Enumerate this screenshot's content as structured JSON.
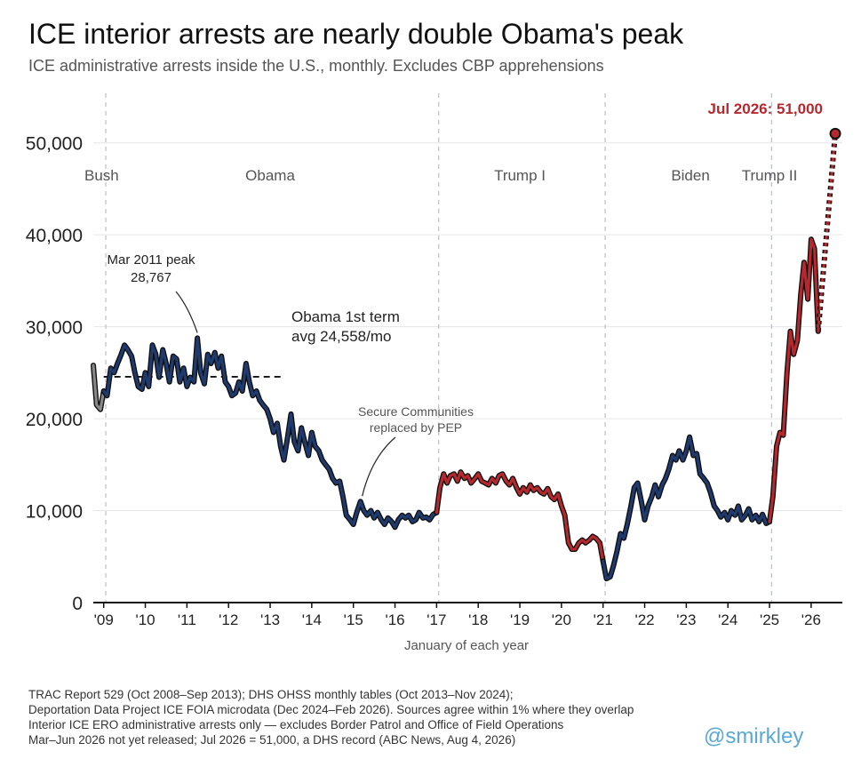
{
  "chart_data": {
    "type": "line",
    "title": "ICE interior arrests are nearly double Obama's peak",
    "subtitle": "ICE administrative arrests inside the U.S., monthly. Excludes CBP apprehensions",
    "xlabel": "January of each year",
    "ylabel": "",
    "xlim": [
      2008.75,
      2026.75
    ],
    "ylim": [
      0,
      52000
    ],
    "x_ticks": [
      2009,
      2010,
      2011,
      2012,
      2013,
      2014,
      2015,
      2016,
      2017,
      2018,
      2019,
      2020,
      2021,
      2022,
      2023,
      2024,
      2025,
      2026
    ],
    "x_tick_labels": [
      "'09",
      "'10",
      "'11",
      "'12",
      "'13",
      "'14",
      "'15",
      "'16",
      "'17",
      "'18",
      "'19",
      "'20",
      "'21",
      "'22",
      "'23",
      "'24",
      "'25",
      "'26"
    ],
    "y_ticks": [
      0,
      10000,
      20000,
      30000,
      40000,
      50000
    ],
    "y_tick_labels": [
      "0",
      "10,000",
      "20,000",
      "30,000",
      "40,000",
      "50,000"
    ],
    "grid": "horizontal",
    "eras": [
      {
        "label": "Bush",
        "start": 2008.75,
        "end": 2009.05,
        "color": "#888888"
      },
      {
        "label": "Obama",
        "start": 2009.05,
        "end": 2017.05,
        "color": "#1f3a6e"
      },
      {
        "label": "Trump I",
        "start": 2017.05,
        "end": 2021.05,
        "color": "#b7282e"
      },
      {
        "label": "Biden",
        "start": 2021.05,
        "end": 2025.05,
        "color": "#1f3a6e"
      },
      {
        "label": "Trump II",
        "start": 2025.05,
        "end": 2026.2,
        "color": "#b7282e"
      }
    ],
    "term_dividers": [
      2009.05,
      2017.05,
      2021.05,
      2025.05
    ],
    "series": [
      {
        "points": [
          [
            2008.75,
            25800
          ],
          [
            2008.83,
            21500
          ],
          [
            2008.92,
            21000
          ],
          [
            2009.0,
            23000
          ],
          [
            2009.08,
            22500
          ],
          [
            2009.17,
            25500
          ],
          [
            2009.25,
            25000
          ],
          [
            2009.33,
            26000
          ],
          [
            2009.42,
            27000
          ],
          [
            2009.5,
            28000
          ],
          [
            2009.58,
            27500
          ],
          [
            2009.67,
            26800
          ],
          [
            2009.75,
            25000
          ],
          [
            2009.83,
            23500
          ],
          [
            2009.92,
            23200
          ],
          [
            2010.0,
            25000
          ],
          [
            2010.08,
            23500
          ],
          [
            2010.17,
            28000
          ],
          [
            2010.25,
            27000
          ],
          [
            2010.33,
            24500
          ],
          [
            2010.42,
            27500
          ],
          [
            2010.5,
            26000
          ],
          [
            2010.58,
            24000
          ],
          [
            2010.67,
            26800
          ],
          [
            2010.75,
            26500
          ],
          [
            2010.83,
            24000
          ],
          [
            2010.92,
            25500
          ],
          [
            2011.0,
            23500
          ],
          [
            2011.08,
            24500
          ],
          [
            2011.17,
            24000
          ],
          [
            2011.25,
            28767
          ],
          [
            2011.33,
            25000
          ],
          [
            2011.42,
            23800
          ],
          [
            2011.5,
            27000
          ],
          [
            2011.58,
            26000
          ],
          [
            2011.67,
            27200
          ],
          [
            2011.75,
            25500
          ],
          [
            2011.83,
            26800
          ],
          [
            2011.92,
            24000
          ],
          [
            2012.0,
            23500
          ],
          [
            2012.08,
            22500
          ],
          [
            2012.17,
            22800
          ],
          [
            2012.25,
            24000
          ],
          [
            2012.33,
            23000
          ],
          [
            2012.42,
            26000
          ],
          [
            2012.5,
            24000
          ],
          [
            2012.58,
            22500
          ],
          [
            2012.67,
            23000
          ],
          [
            2012.75,
            22000
          ],
          [
            2012.83,
            21500
          ],
          [
            2012.92,
            21000
          ],
          [
            2013.0,
            20000
          ],
          [
            2013.08,
            18500
          ],
          [
            2013.17,
            19500
          ],
          [
            2013.25,
            17000
          ],
          [
            2013.33,
            15500
          ],
          [
            2013.42,
            18000
          ],
          [
            2013.5,
            20500
          ],
          [
            2013.58,
            17500
          ],
          [
            2013.67,
            16500
          ],
          [
            2013.75,
            19000
          ],
          [
            2013.83,
            17500
          ],
          [
            2013.92,
            16000
          ],
          [
            2014.0,
            18500
          ],
          [
            2014.08,
            17000
          ],
          [
            2014.17,
            16500
          ],
          [
            2014.25,
            15500
          ],
          [
            2014.33,
            15000
          ],
          [
            2014.42,
            14500
          ],
          [
            2014.5,
            13500
          ],
          [
            2014.58,
            13000
          ],
          [
            2014.67,
            13200
          ],
          [
            2014.75,
            11500
          ],
          [
            2014.83,
            9500
          ],
          [
            2014.92,
            9000
          ],
          [
            2015.0,
            8500
          ],
          [
            2015.08,
            9800
          ],
          [
            2015.17,
            11000
          ],
          [
            2015.25,
            10000
          ],
          [
            2015.33,
            9500
          ],
          [
            2015.42,
            10000
          ],
          [
            2015.5,
            9200
          ],
          [
            2015.58,
            9800
          ],
          [
            2015.67,
            9000
          ],
          [
            2015.75,
            8500
          ],
          [
            2015.83,
            9200
          ],
          [
            2015.92,
            8800
          ],
          [
            2016.0,
            8200
          ],
          [
            2016.08,
            9000
          ],
          [
            2016.17,
            9500
          ],
          [
            2016.25,
            9200
          ],
          [
            2016.33,
            9500
          ],
          [
            2016.42,
            8800
          ],
          [
            2016.5,
            9000
          ],
          [
            2016.58,
            9800
          ],
          [
            2016.67,
            9200
          ],
          [
            2016.75,
            9300
          ],
          [
            2016.83,
            9000
          ],
          [
            2016.92,
            9600
          ],
          [
            2017.0,
            9800
          ],
          [
            2017.08,
            12500
          ],
          [
            2017.17,
            14000
          ],
          [
            2017.25,
            13000
          ],
          [
            2017.33,
            13800
          ],
          [
            2017.42,
            14000
          ],
          [
            2017.5,
            13200
          ],
          [
            2017.58,
            14200
          ],
          [
            2017.67,
            13500
          ],
          [
            2017.75,
            13800
          ],
          [
            2017.83,
            13000
          ],
          [
            2017.92,
            13500
          ],
          [
            2018.0,
            14000
          ],
          [
            2018.08,
            13200
          ],
          [
            2018.17,
            13000
          ],
          [
            2018.25,
            12800
          ],
          [
            2018.33,
            13500
          ],
          [
            2018.42,
            13000
          ],
          [
            2018.5,
            13800
          ],
          [
            2018.58,
            14000
          ],
          [
            2018.67,
            13200
          ],
          [
            2018.75,
            12800
          ],
          [
            2018.83,
            13500
          ],
          [
            2018.92,
            12500
          ],
          [
            2019.0,
            11800
          ],
          [
            2019.08,
            12500
          ],
          [
            2019.17,
            12000
          ],
          [
            2019.25,
            12800
          ],
          [
            2019.33,
            12200
          ],
          [
            2019.42,
            12500
          ],
          [
            2019.5,
            12000
          ],
          [
            2019.58,
            11800
          ],
          [
            2019.67,
            12400
          ],
          [
            2019.75,
            11500
          ],
          [
            2019.83,
            11200
          ],
          [
            2019.92,
            11800
          ],
          [
            2020.0,
            10500
          ],
          [
            2020.08,
            9500
          ],
          [
            2020.17,
            6500
          ],
          [
            2020.25,
            5800
          ],
          [
            2020.33,
            5800
          ],
          [
            2020.42,
            6500
          ],
          [
            2020.5,
            6800
          ],
          [
            2020.58,
            6500
          ],
          [
            2020.67,
            6800
          ],
          [
            2020.75,
            7200
          ],
          [
            2020.83,
            7000
          ],
          [
            2020.92,
            6500
          ],
          [
            2021.0,
            4500
          ],
          [
            2021.08,
            2600
          ],
          [
            2021.17,
            2800
          ],
          [
            2021.25,
            4000
          ],
          [
            2021.33,
            5500
          ],
          [
            2021.42,
            7500
          ],
          [
            2021.5,
            7000
          ],
          [
            2021.58,
            8500
          ],
          [
            2021.67,
            10500
          ],
          [
            2021.75,
            12500
          ],
          [
            2021.83,
            13000
          ],
          [
            2021.92,
            11000
          ],
          [
            2022.0,
            9000
          ],
          [
            2022.08,
            10500
          ],
          [
            2022.17,
            11500
          ],
          [
            2022.25,
            12800
          ],
          [
            2022.33,
            11500
          ],
          [
            2022.42,
            12800
          ],
          [
            2022.5,
            13500
          ],
          [
            2022.58,
            14500
          ],
          [
            2022.67,
            16000
          ],
          [
            2022.75,
            15500
          ],
          [
            2022.83,
            16500
          ],
          [
            2022.92,
            15500
          ],
          [
            2023.0,
            16500
          ],
          [
            2023.08,
            18000
          ],
          [
            2023.17,
            16000
          ],
          [
            2023.25,
            16200
          ],
          [
            2023.33,
            14000
          ],
          [
            2023.42,
            13500
          ],
          [
            2023.5,
            13000
          ],
          [
            2023.58,
            12000
          ],
          [
            2023.67,
            10500
          ],
          [
            2023.75,
            10000
          ],
          [
            2023.83,
            9300
          ],
          [
            2023.92,
            9800
          ],
          [
            2024.0,
            9000
          ],
          [
            2024.08,
            10000
          ],
          [
            2024.17,
            9500
          ],
          [
            2024.25,
            10500
          ],
          [
            2024.33,
            9000
          ],
          [
            2024.42,
            9500
          ],
          [
            2024.5,
            10200
          ],
          [
            2024.58,
            9000
          ],
          [
            2024.67,
            9500
          ],
          [
            2024.75,
            8800
          ],
          [
            2024.83,
            9600
          ],
          [
            2024.92,
            8600
          ],
          [
            2025.0,
            8800
          ],
          [
            2025.08,
            11500
          ],
          [
            2025.17,
            17000
          ],
          [
            2025.25,
            18500
          ],
          [
            2025.33,
            18200
          ],
          [
            2025.42,
            25000
          ],
          [
            2025.5,
            29500
          ],
          [
            2025.58,
            27000
          ],
          [
            2025.67,
            28500
          ],
          [
            2025.75,
            33500
          ],
          [
            2025.83,
            37000
          ],
          [
            2025.92,
            33000
          ],
          [
            2026.0,
            39500
          ],
          [
            2026.08,
            38500
          ],
          [
            2026.17,
            29500
          ]
        ]
      },
      {
        "style": "dotted",
        "points": [
          [
            2026.17,
            29500
          ],
          [
            2026.58,
            51000
          ]
        ]
      }
    ],
    "reference_line": {
      "start": 2009.0,
      "end": 2013.33,
      "value": 24558
    },
    "annotations": [
      {
        "text_lines": [
          "Mar 2011 peak",
          "28,767"
        ],
        "x": 2011.25,
        "y": 28767
      },
      {
        "text_lines": [
          "Obama 1st term",
          "avg 24,558/mo"
        ]
      },
      {
        "text_lines": [
          "Secure Communities",
          "replaced by PEP"
        ],
        "x": 2015.17,
        "y": 11000
      },
      {
        "text_lines": [
          "Jul 2026: 51,000"
        ],
        "x": 2026.58,
        "y": 51000
      }
    ]
  },
  "footer": {
    "lines": [
      "TRAC Report 529 (Oct 2008–Sep 2013); DHS OHSS monthly tables (Oct 2013–Nov 2024);",
      "Deportation Data Project ICE FOIA microdata (Dec 2024–Feb 2026). Sources agree within 1% where they overlap",
      "Interior ICE ERO administrative arrests only — excludes Border Patrol and Office of Field Operations",
      "Mar–Jun 2026 not yet released; Jul 2026 = 51,000, a DHS record (ABC News, Aug 4, 2026)"
    ],
    "credit": "@smirkley"
  },
  "colors": {
    "obama_biden": "#1f3a6e",
    "trump": "#b7282e",
    "bush": "#888888",
    "highlight": "#b7282e",
    "credit": "#5aa8d6"
  }
}
